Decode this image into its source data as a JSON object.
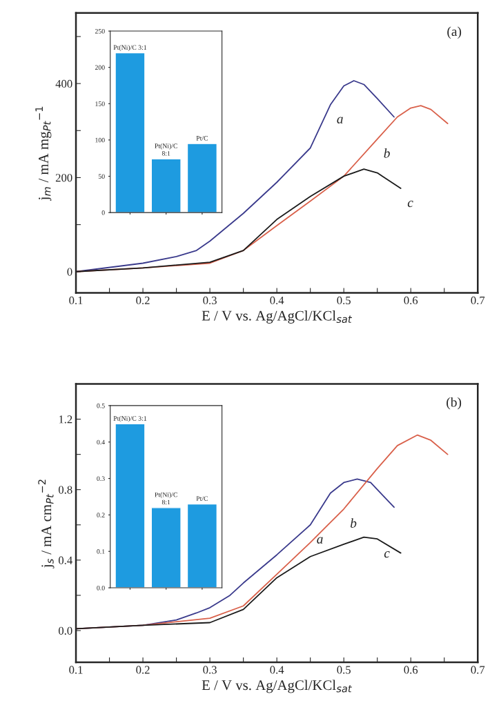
{
  "chart_data": [
    {
      "type": "line",
      "xlabel": "E / V vs. Ag/AgCl/KCl$_{sat}$",
      "ylabel": "j$_{m}$ / mA mg$_{Pt}$$^{−1}$",
      "xlim": [
        0.1,
        0.7
      ],
      "ylim": [
        -45,
        550
      ],
      "xticks": [
        0.1,
        {
          "value": 0.15,
          "label": null
        },
        0.2,
        {
          "value": 0.25,
          "label": null
        },
        0.3,
        {
          "value": 0.35,
          "label": null
        },
        0.4,
        {
          "value": 0.45,
          "label": null
        },
        0.5,
        {
          "value": 0.55,
          "label": null
        },
        0.6,
        {
          "value": 0.65,
          "label": null
        },
        0.7
      ],
      "yticks": [
        0,
        {
          "value": 100,
          "label": null
        },
        200,
        {
          "value": 300,
          "label": null
        },
        400,
        {
          "value": 500,
          "label": null
        }
      ],
      "annotations": [
        "(a)",
        {
          "text": "a",
          "x": 0.48,
          "y": 355
        },
        {
          "text": "b",
          "x": 0.55,
          "y": 282
        },
        {
          "text": "c",
          "x": 0.585,
          "y": 177
        }
      ],
      "series": [
        {
          "color": "#3a3a8c",
          "x": [
            0.1,
            0.2,
            0.25,
            0.28,
            0.3,
            0.35,
            0.4,
            0.45,
            0.48,
            0.5,
            0.515,
            0.53,
            0.55,
            0.575
          ],
          "values": [
            0,
            18,
            32,
            45,
            65,
            124,
            190,
            263,
            355,
            395,
            406,
            398,
            368,
            329
          ]
        },
        {
          "color": "#d9604a",
          "x": [
            0.1,
            0.2,
            0.3,
            0.35,
            0.4,
            0.45,
            0.5,
            0.55,
            0.58,
            0.6,
            0.615,
            0.63,
            0.655
          ],
          "values": [
            0,
            8,
            18,
            45,
            98,
            150,
            203,
            282,
            329,
            348,
            353,
            345,
            315
          ]
        },
        {
          "color": "#1a1a1a",
          "x": [
            0.1,
            0.2,
            0.3,
            0.35,
            0.4,
            0.45,
            0.5,
            0.53,
            0.55,
            0.585
          ],
          "values": [
            0,
            8,
            20,
            45,
            111,
            160,
            203,
            218,
            210,
            177
          ]
        }
      ]
    },
    {
      "type": "bar",
      "categories": [
        "Pt(Ni)/C 3:1",
        "Pt(Ni)/C\n8:1",
        "Pt/C"
      ],
      "values": [
        220,
        74,
        95
      ],
      "color": "#1e9be0",
      "ylim": [
        0,
        250
      ],
      "yticks": [
        0,
        50,
        100,
        150,
        200,
        250
      ]
    },
    {
      "type": "line",
      "xlabel": "E / V vs. Ag/AgCl/KCl$_{sat}$",
      "ylabel": "j$_{s}$ / mA cm$_{Pt}$$^{−2}$",
      "xlim": [
        0.1,
        0.7
      ],
      "ylim": [
        -0.18,
        1.4
      ],
      "xticks": [
        0.1,
        {
          "value": 0.15,
          "label": null
        },
        0.2,
        {
          "value": 0.25,
          "label": null
        },
        0.3,
        {
          "value": 0.35,
          "label": null
        },
        0.4,
        {
          "value": 0.45,
          "label": null
        },
        0.5,
        {
          "value": 0.55,
          "label": null
        },
        0.6,
        {
          "value": 0.65,
          "label": null
        },
        0.7
      ],
      "yticks": [
        {
          "value": 0,
          "label": "0.0"
        },
        {
          "value": 0.2,
          "label": null
        },
        0.4,
        {
          "value": 0.6,
          "label": null
        },
        0.8,
        {
          "value": 1.0,
          "label": null
        },
        1.2
      ],
      "annotations": [
        "(b)",
        {
          "text": "a",
          "x": 0.45,
          "y": 0.6
        },
        {
          "text": "b",
          "x": 0.5,
          "y": 0.69
        },
        {
          "text": "c",
          "x": 0.55,
          "y": 0.52
        }
      ],
      "series": [
        {
          "color": "#3a3a8c",
          "x": [
            0.1,
            0.2,
            0.25,
            0.28,
            0.3,
            0.33,
            0.35,
            0.4,
            0.45,
            0.48,
            0.5,
            0.52,
            0.54,
            0.56,
            0.575
          ],
          "values": [
            0.01,
            0.03,
            0.06,
            0.1,
            0.13,
            0.2,
            0.27,
            0.43,
            0.6,
            0.78,
            0.84,
            0.86,
            0.84,
            0.76,
            0.7
          ]
        },
        {
          "color": "#d9604a",
          "x": [
            0.1,
            0.2,
            0.3,
            0.35,
            0.4,
            0.45,
            0.5,
            0.55,
            0.58,
            0.61,
            0.63,
            0.655
          ],
          "values": [
            0.01,
            0.03,
            0.07,
            0.14,
            0.32,
            0.5,
            0.69,
            0.92,
            1.05,
            1.11,
            1.08,
            1.0
          ]
        },
        {
          "color": "#1a1a1a",
          "x": [
            0.1,
            0.2,
            0.3,
            0.35,
            0.4,
            0.45,
            0.5,
            0.53,
            0.55,
            0.585
          ],
          "values": [
            0.01,
            0.03,
            0.045,
            0.12,
            0.3,
            0.42,
            0.49,
            0.53,
            0.52,
            0.44
          ]
        }
      ]
    },
    {
      "type": "bar",
      "categories": [
        "Pt(Ni)/C 3:1",
        "Pt(Ni)/C\n8:1",
        "Pt/C"
      ],
      "values": [
        0.45,
        0.22,
        0.23
      ],
      "color": "#1e9be0",
      "ylim": [
        0,
        0.5
      ],
      "yticks": [
        {
          "value": 0,
          "label": "0.0"
        },
        0.1,
        0.2,
        0.3,
        0.4,
        0.5
      ]
    }
  ]
}
